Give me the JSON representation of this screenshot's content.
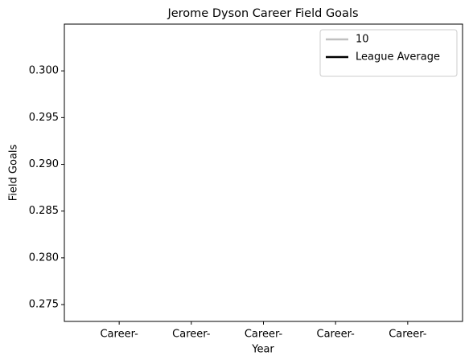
{
  "chart_data": {
    "type": "line",
    "title": "Jerome Dyson Career Field Goals",
    "xlabel": "Year",
    "ylabel": "Field Goals",
    "categories": [
      "Career-",
      "Career-",
      "Career-",
      "Career-",
      "Career-"
    ],
    "series": [
      {
        "name": "10",
        "color": "#c0c0c0",
        "values": [
          null,
          null,
          null,
          null,
          null
        ]
      },
      {
        "name": "League Average",
        "color": "#000000",
        "values": [
          null,
          null,
          null,
          null,
          null
        ]
      }
    ],
    "ylim": [
      0.2732,
      0.305
    ],
    "yticks": [
      0.275,
      {
        "value": 0.28,
        "label": "0.280"
      },
      0.285,
      {
        "value": 0.29,
        "label": "0.290"
      },
      0.295,
      {
        "value": 0.3,
        "label": "0.300"
      }
    ],
    "legend": "upper right",
    "grid": false
  }
}
